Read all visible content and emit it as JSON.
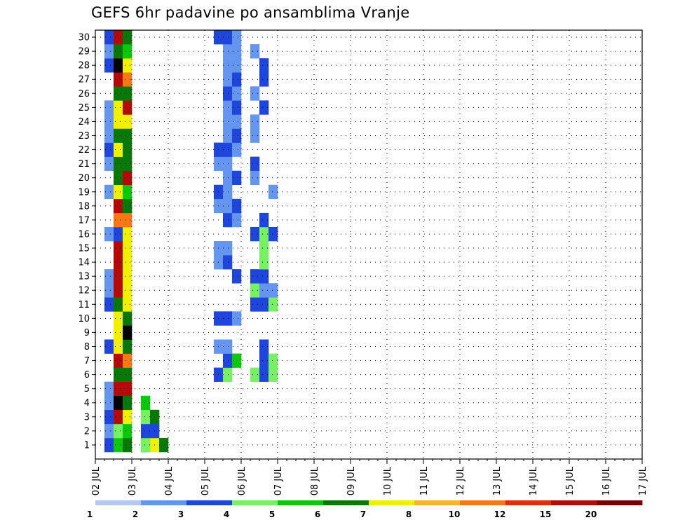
{
  "chart_data": {
    "type": "heatmap",
    "title": "GEFS 6hr padavine po ansamblima Vranje",
    "xlabel": "",
    "ylabel": "",
    "x_ticks": [
      "02 JUL",
      "03 JUL",
      "04 JUL",
      "05 JUL",
      "06 JUL",
      "07 JUL",
      "08 JUL",
      "09 JUL",
      "10 JUL",
      "11 JUL",
      "12 JUL",
      "13 JUL",
      "14 JUL",
      "15 JUL",
      "16 JUL",
      "17 JUL"
    ],
    "y_ticks": [
      1,
      2,
      3,
      4,
      5,
      6,
      7,
      8,
      9,
      10,
      11,
      12,
      13,
      14,
      15,
      16,
      17,
      18,
      19,
      20,
      21,
      22,
      23,
      24,
      25,
      26,
      27,
      28,
      29,
      30
    ],
    "grid": true,
    "colorbar": {
      "labels": [
        "1",
        "2",
        "3",
        "4",
        "5",
        "6",
        "7",
        "8",
        "10",
        "12",
        "15",
        "20"
      ],
      "colors": [
        "#b4c8f8",
        "#6496f0",
        "#1e46dc",
        "#78f064",
        "#0ac80a",
        "#087808",
        "#f0f000",
        "#f8b428",
        "#f87814",
        "#e62d0a",
        "#b40a0a",
        "#780000"
      ]
    },
    "cells": [
      [
        0,
        1,
        0,
        2
      ],
      [
        0,
        2,
        0,
        4
      ],
      [
        0,
        3,
        0,
        5
      ],
      [
        1,
        1,
        0,
        2
      ],
      [
        1,
        2,
        0,
        6
      ],
      [
        1,
        3,
        0,
        5
      ],
      [
        0,
        1,
        1,
        1
      ],
      [
        0,
        2,
        1,
        3
      ],
      [
        0,
        3,
        1,
        4
      ],
      [
        0,
        1,
        2,
        2
      ],
      [
        0,
        2,
        2,
        10
      ],
      [
        0,
        3,
        2,
        6
      ],
      [
        0,
        1,
        3,
        1
      ],
      [
        0,
        2,
        3,
        12
      ],
      [
        0,
        3,
        3,
        5
      ],
      [
        0,
        1,
        4,
        1
      ],
      [
        0,
        2,
        4,
        10
      ],
      [
        0,
        3,
        4,
        10
      ],
      [
        0,
        2,
        5,
        5
      ],
      [
        0,
        3,
        5,
        5
      ],
      [
        0,
        2,
        6,
        10
      ],
      [
        0,
        3,
        6,
        8
      ],
      [
        0,
        1,
        7,
        2
      ],
      [
        0,
        2,
        7,
        6
      ],
      [
        0,
        3,
        7,
        5
      ],
      [
        0,
        2,
        8,
        6
      ],
      [
        0,
        3,
        8,
        12
      ],
      [
        0,
        2,
        9,
        6
      ],
      [
        0,
        3,
        9,
        5
      ],
      [
        0,
        1,
        10,
        2
      ],
      [
        0,
        2,
        10,
        5
      ],
      [
        0,
        3,
        10,
        6
      ],
      [
        0,
        1,
        11,
        1
      ],
      [
        0,
        2,
        11,
        10
      ],
      [
        0,
        3,
        11,
        6
      ],
      [
        0,
        1,
        12,
        1
      ],
      [
        0,
        2,
        12,
        10
      ],
      [
        0,
        3,
        12,
        6
      ],
      [
        0,
        2,
        13,
        10
      ],
      [
        0,
        3,
        13,
        6
      ],
      [
        0,
        2,
        14,
        10
      ],
      [
        0,
        3,
        14,
        6
      ],
      [
        0,
        1,
        15,
        1
      ],
      [
        0,
        2,
        15,
        2
      ],
      [
        0,
        3,
        15,
        6
      ],
      [
        0,
        2,
        16,
        8
      ],
      [
        0,
        3,
        16,
        8
      ],
      [
        0,
        2,
        17,
        10
      ],
      [
        0,
        3,
        17,
        5
      ],
      [
        0,
        1,
        18,
        1
      ],
      [
        0,
        2,
        18,
        6
      ],
      [
        0,
        3,
        18,
        4
      ],
      [
        0,
        2,
        19,
        5
      ],
      [
        0,
        3,
        19,
        10
      ],
      [
        0,
        1,
        20,
        1
      ],
      [
        0,
        2,
        20,
        5
      ],
      [
        0,
        3,
        20,
        5
      ],
      [
        0,
        1,
        21,
        2
      ],
      [
        0,
        2,
        21,
        6
      ],
      [
        0,
        3,
        21,
        5
      ],
      [
        0,
        1,
        22,
        1
      ],
      [
        0,
        2,
        22,
        5
      ],
      [
        0,
        3,
        22,
        5
      ],
      [
        0,
        1,
        23,
        1
      ],
      [
        0,
        2,
        23,
        6
      ],
      [
        0,
        3,
        23,
        6
      ],
      [
        0,
        1,
        24,
        1
      ],
      [
        0,
        2,
        24,
        6
      ],
      [
        0,
        3,
        24,
        10
      ],
      [
        0,
        2,
        25,
        5
      ],
      [
        0,
        3,
        25,
        5
      ],
      [
        0,
        2,
        26,
        10
      ],
      [
        0,
        3,
        26,
        8
      ],
      [
        0,
        1,
        27,
        2
      ],
      [
        0,
        2,
        27,
        12
      ],
      [
        0,
        3,
        27,
        6
      ],
      [
        0,
        1,
        28,
        1
      ],
      [
        0,
        2,
        28,
        5
      ],
      [
        0,
        3,
        28,
        4
      ],
      [
        0,
        1,
        29,
        2
      ],
      [
        0,
        2,
        29,
        10
      ],
      [
        0,
        3,
        29,
        5
      ],
      [
        1,
        1,
        0,
        3
      ],
      [
        1,
        1,
        1,
        2
      ],
      [
        1,
        2,
        1,
        2
      ],
      [
        1,
        1,
        2,
        3
      ],
      [
        1,
        2,
        2,
        5
      ],
      [
        1,
        1,
        3,
        4
      ],
      [
        3,
        1,
        5,
        2
      ],
      [
        3,
        2,
        5,
        3
      ],
      [
        4,
        1,
        5,
        3
      ],
      [
        4,
        2,
        5,
        2
      ],
      [
        4,
        3,
        5,
        3
      ],
      [
        3,
        2,
        6,
        2
      ],
      [
        3,
        3,
        6,
        4
      ],
      [
        4,
        2,
        6,
        2
      ],
      [
        4,
        3,
        6,
        3
      ],
      [
        3,
        1,
        7,
        1
      ],
      [
        3,
        2,
        7,
        1
      ],
      [
        4,
        2,
        7,
        2
      ],
      [
        3,
        1,
        9,
        2
      ],
      [
        3,
        2,
        9,
        2
      ],
      [
        3,
        3,
        9,
        1
      ],
      [
        4,
        1,
        10,
        2
      ],
      [
        4,
        2,
        10,
        2
      ],
      [
        4,
        3,
        10,
        3
      ],
      [
        4,
        1,
        11,
        3
      ],
      [
        4,
        2,
        11,
        1
      ],
      [
        4,
        3,
        11,
        1
      ],
      [
        3,
        3,
        12,
        2
      ],
      [
        4,
        1,
        12,
        2
      ],
      [
        4,
        2,
        12,
        2
      ],
      [
        3,
        1,
        13,
        1
      ],
      [
        3,
        2,
        13,
        2
      ],
      [
        4,
        2,
        13,
        3
      ],
      [
        3,
        1,
        14,
        1
      ],
      [
        3,
        2,
        14,
        1
      ],
      [
        4,
        2,
        14,
        3
      ],
      [
        4,
        1,
        15,
        2
      ],
      [
        4,
        2,
        15,
        3
      ],
      [
        4,
        3,
        15,
        2
      ],
      [
        3,
        2,
        16,
        2
      ],
      [
        3,
        3,
        16,
        1
      ],
      [
        4,
        2,
        16,
        2
      ],
      [
        3,
        1,
        17,
        1
      ],
      [
        3,
        2,
        17,
        1
      ],
      [
        3,
        3,
        17,
        2
      ],
      [
        3,
        1,
        18,
        2
      ],
      [
        3,
        2,
        18,
        1
      ],
      [
        4,
        3,
        18,
        1
      ],
      [
        3,
        2,
        19,
        1
      ],
      [
        3,
        3,
        19,
        2
      ],
      [
        4,
        1,
        19,
        1
      ],
      [
        3,
        1,
        20,
        1
      ],
      [
        3,
        2,
        20,
        1
      ],
      [
        4,
        1,
        20,
        2
      ],
      [
        3,
        1,
        21,
        2
      ],
      [
        3,
        2,
        21,
        2
      ],
      [
        3,
        3,
        21,
        1
      ],
      [
        3,
        2,
        22,
        1
      ],
      [
        3,
        3,
        22,
        2
      ],
      [
        4,
        1,
        22,
        1
      ],
      [
        3,
        2,
        23,
        1
      ],
      [
        3,
        3,
        23,
        1
      ],
      [
        4,
        1,
        23,
        1
      ],
      [
        3,
        2,
        24,
        1
      ],
      [
        3,
        3,
        24,
        2
      ],
      [
        4,
        2,
        24,
        2
      ],
      [
        3,
        2,
        25,
        2
      ],
      [
        3,
        3,
        25,
        1
      ],
      [
        4,
        1,
        25,
        1
      ],
      [
        3,
        2,
        26,
        1
      ],
      [
        3,
        3,
        26,
        2
      ],
      [
        4,
        2,
        26,
        2
      ],
      [
        3,
        2,
        27,
        1
      ],
      [
        3,
        3,
        27,
        1
      ],
      [
        4,
        2,
        27,
        2
      ],
      [
        3,
        2,
        28,
        1
      ],
      [
        3,
        3,
        28,
        1
      ],
      [
        4,
        1,
        28,
        1
      ],
      [
        3,
        1,
        29,
        2
      ],
      [
        3,
        2,
        29,
        2
      ],
      [
        3,
        3,
        29,
        1
      ]
    ]
  }
}
